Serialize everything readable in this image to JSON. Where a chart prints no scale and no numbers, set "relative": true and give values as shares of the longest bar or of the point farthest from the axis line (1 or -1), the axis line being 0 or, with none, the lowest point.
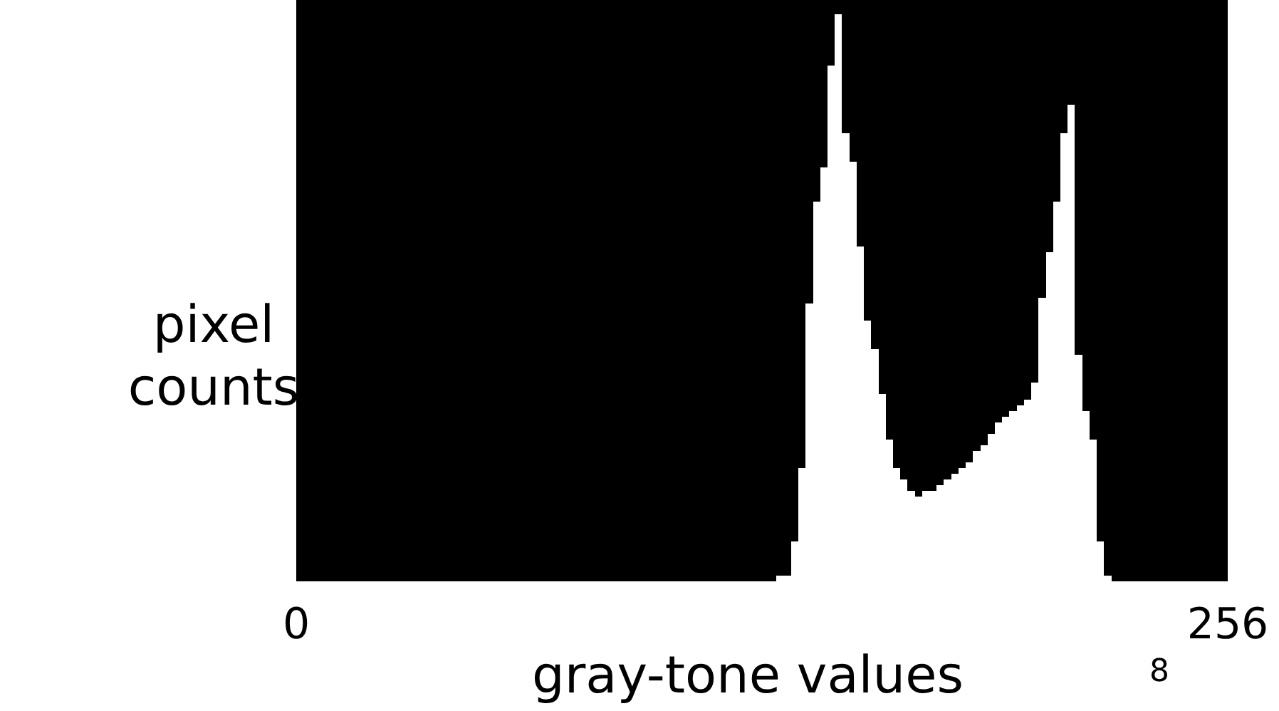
{
  "chart_data": {
    "type": "bar",
    "xlabel": "gray-tone values",
    "ylabel": "pixel counts",
    "relative": true,
    "color": "#ffffff",
    "x": [
      133,
      135,
      137,
      139,
      141,
      143,
      145,
      147,
      149,
      151,
      153,
      155,
      157,
      159,
      161,
      163,
      165,
      167,
      169,
      171,
      173,
      175,
      177,
      179,
      181,
      183,
      185,
      187,
      189,
      191,
      193,
      195,
      197,
      199,
      201,
      203,
      205,
      207,
      209,
      211,
      213,
      215,
      217,
      219,
      221,
      223
    ],
    "values": [
      0.01,
      0.01,
      0.07,
      0.2,
      0.49,
      0.67,
      0.73,
      0.91,
      1.0,
      0.79,
      0.74,
      0.59,
      0.46,
      0.41,
      0.33,
      0.25,
      0.2,
      0.18,
      0.16,
      0.15,
      0.16,
      0.16,
      0.17,
      0.18,
      0.19,
      0.2,
      0.21,
      0.23,
      0.24,
      0.26,
      0.28,
      0.29,
      0.3,
      0.31,
      0.32,
      0.35,
      0.5,
      0.58,
      0.67,
      0.79,
      0.84,
      0.4,
      0.3,
      0.25,
      0.07,
      0.01
    ],
    "xlim": [
      0,
      256
    ],
    "xticks": [
      0,
      256
    ],
    "annotations": [
      "8"
    ]
  }
}
